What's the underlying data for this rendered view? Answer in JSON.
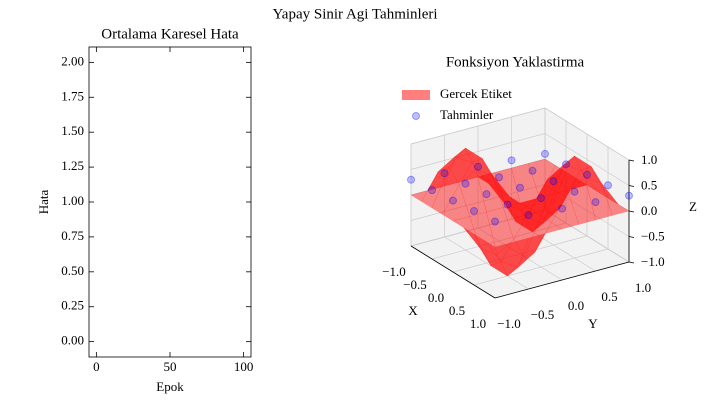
{
  "title": "Yapay Sinir Agi Tahminleri",
  "chart_data": [
    {
      "type": "line",
      "title": "Ortalama Karesel Hata",
      "xlabel": "Epok",
      "ylabel": "Hata",
      "xlim": [
        -5,
        105
      ],
      "xticks": [
        0,
        50,
        100
      ],
      "ylim": [
        -0.11,
        2.11
      ],
      "yticks": [
        {
          "value": 0,
          "label": "0.00"
        },
        {
          "value": 0.25,
          "label": "0.25"
        },
        {
          "value": 0.5,
          "label": "0.50"
        },
        {
          "value": 0.75,
          "label": "0.75"
        },
        {
          "value": 1,
          "label": "1.00"
        },
        {
          "value": 1.25,
          "label": "1.25"
        },
        {
          "value": 1.5,
          "label": "1.50"
        },
        {
          "value": 1.75,
          "label": "1.75"
        },
        {
          "value": 2,
          "label": "2.00"
        }
      ]
    },
    {
      "type": "surface3d",
      "title": "Fonksiyon Yaklastirma",
      "xlabel": "X",
      "ylabel": "Y",
      "zlabel": "Z",
      "xlim": [
        -1,
        1
      ],
      "ylim": [
        -1,
        1
      ],
      "zlim": [
        -1,
        1
      ],
      "xticks": [
        {
          "value": -1,
          "label": "−1.0"
        },
        {
          "value": -0.5,
          "label": "−0.5"
        },
        {
          "value": 0,
          "label": "0.0"
        },
        {
          "value": 0.5,
          "label": "0.5"
        },
        {
          "value": 1,
          "label": "1.0"
        }
      ],
      "yticks": [
        {
          "value": -1,
          "label": "−1.0"
        },
        {
          "value": -0.5,
          "label": "−0.5"
        },
        {
          "value": 0,
          "label": "0.0"
        },
        {
          "value": 0.5,
          "label": "0.5"
        },
        {
          "value": 1,
          "label": "1.0"
        }
      ],
      "zticks": [
        {
          "value": -1,
          "label": "−1.0"
        },
        {
          "value": -0.5,
          "label": "−0.5"
        },
        {
          "value": 0,
          "label": "0.0"
        },
        {
          "value": 0.5,
          "label": "0.5"
        },
        {
          "value": 1,
          "label": "1.0"
        }
      ],
      "grid": true,
      "legend": "upper left",
      "series": [
        {
          "name": "Gercek Etiket",
          "kind": "surface",
          "color": "red",
          "x": [
            -1,
            -0.75,
            -0.5,
            -0.25,
            0,
            0.25,
            0.5,
            0.75,
            1
          ],
          "y": [
            -1,
            -0.75,
            -0.5,
            -0.25,
            0,
            0.25,
            0.5,
            0.75,
            1
          ],
          "z": [
            [
              0,
              0,
              0,
              0,
              0,
              0,
              0,
              0,
              0
            ],
            [
              0,
              0.5,
              0.707,
              0.5,
              0,
              -0.5,
              -0.707,
              -0.5,
              0
            ],
            [
              0,
              0.707,
              1,
              0.707,
              0,
              -0.707,
              -1,
              -0.707,
              0
            ],
            [
              0,
              0.5,
              0.707,
              0.5,
              0,
              -0.5,
              -0.707,
              -0.5,
              0
            ],
            [
              0,
              0,
              0,
              0,
              0,
              0,
              0,
              0,
              0
            ],
            [
              0,
              -0.5,
              -0.707,
              -0.5,
              0,
              0.5,
              0.707,
              0.5,
              0
            ],
            [
              0,
              -0.707,
              -1,
              -0.707,
              0,
              0.707,
              1,
              0.707,
              0
            ],
            [
              0,
              -0.5,
              -0.707,
              -0.5,
              0,
              0.5,
              0.707,
              0.5,
              0
            ],
            [
              0,
              0,
              0,
              0,
              0,
              0,
              0,
              0,
              0
            ]
          ]
        },
        {
          "name": "Tahminler",
          "kind": "scatter",
          "color": "blue",
          "x": [
            -1,
            -1,
            -1,
            -1,
            -1,
            -0.5,
            -0.5,
            -0.5,
            -0.5,
            -0.5,
            0,
            0,
            0,
            0,
            0,
            0.5,
            0.5,
            0.5,
            0.5,
            0.5,
            1,
            1,
            1,
            1,
            1
          ],
          "y": [
            -1,
            -0.5,
            0,
            0.5,
            1,
            -1,
            -0.5,
            0,
            0.5,
            1,
            -1,
            -0.5,
            0,
            0.5,
            1,
            -1,
            -0.5,
            0,
            0.5,
            1,
            -1,
            -0.5,
            0,
            0.5,
            1
          ],
          "z": [
            0.3,
            0.25,
            0.2,
            0.15,
            0.1,
            0.35,
            0.3,
            0.25,
            0.2,
            0.15,
            0.4,
            0.35,
            0.3,
            0.25,
            0.2,
            0.45,
            0.4,
            0.35,
            0.3,
            0.25,
            0.5,
            0.45,
            0.4,
            0.35,
            0.3
          ]
        }
      ]
    }
  ]
}
